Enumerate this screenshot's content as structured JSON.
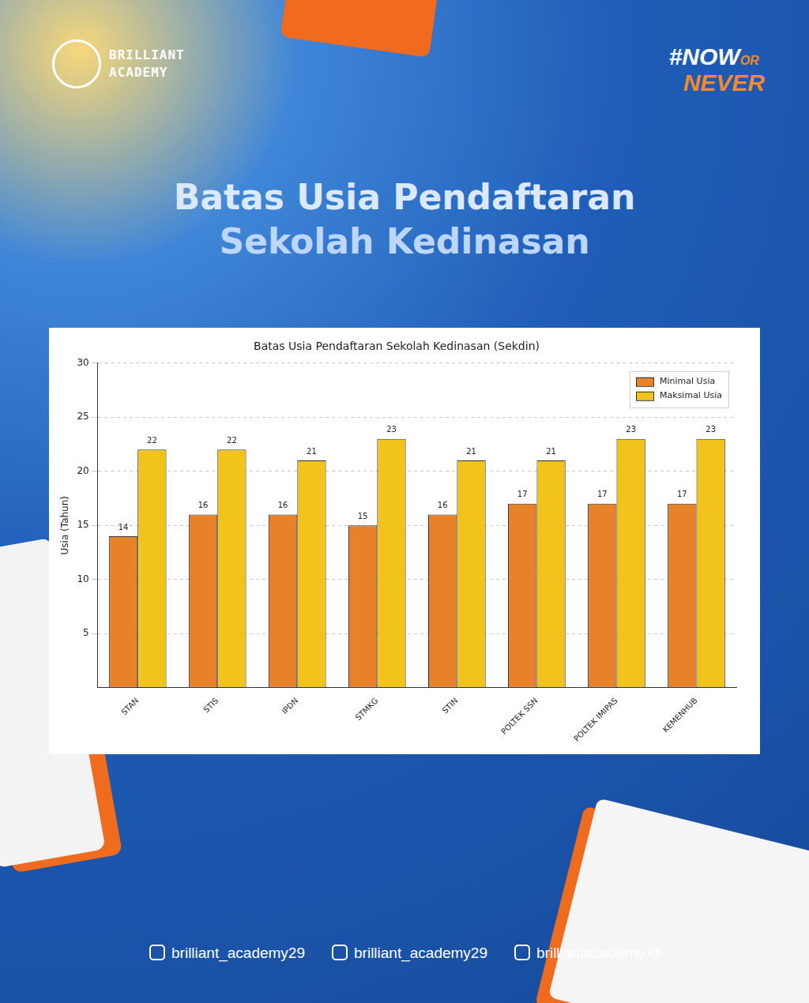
{
  "page": {
    "brand": [
      "BRILLIANT",
      "ACADEMY"
    ],
    "hashtag": [
      "#NOW",
      "OR",
      "NEVER"
    ],
    "heading": [
      "Batas Usia Pendaftaran",
      "Sekolah Kedinasan"
    ],
    "footer": [
      "brilliant_academy29",
      "brilliant_academy29",
      "brilliantacademy.id"
    ]
  },
  "chart_data": {
    "type": "bar",
    "title": "Batas Usia Pendaftaran Sekolah Kedinasan (Sekdin)",
    "y_label": "Usia (Tahun)",
    "categories": [
      "STAN",
      "STIS",
      "IPDN",
      "STMKG",
      "STIN",
      "POLTEK SSN",
      "POLTEK IMIPAS",
      "KEMENHUB"
    ],
    "series": [
      {
        "name": "Minimal Usia",
        "color": "#e8822a",
        "values": [
          14,
          16,
          16,
          15,
          16,
          17,
          17,
          17
        ]
      },
      {
        "name": "Maksimal Usia",
        "color": "#f2c31a",
        "values": [
          22,
          22,
          21,
          23,
          21,
          21,
          23,
          23
        ]
      }
    ],
    "ylim": [
      0,
      30
    ],
    "yticks": [
      5,
      10,
      15,
      20,
      25,
      30
    ],
    "grid": true,
    "legend": "upper right",
    "data_labels": true
  }
}
